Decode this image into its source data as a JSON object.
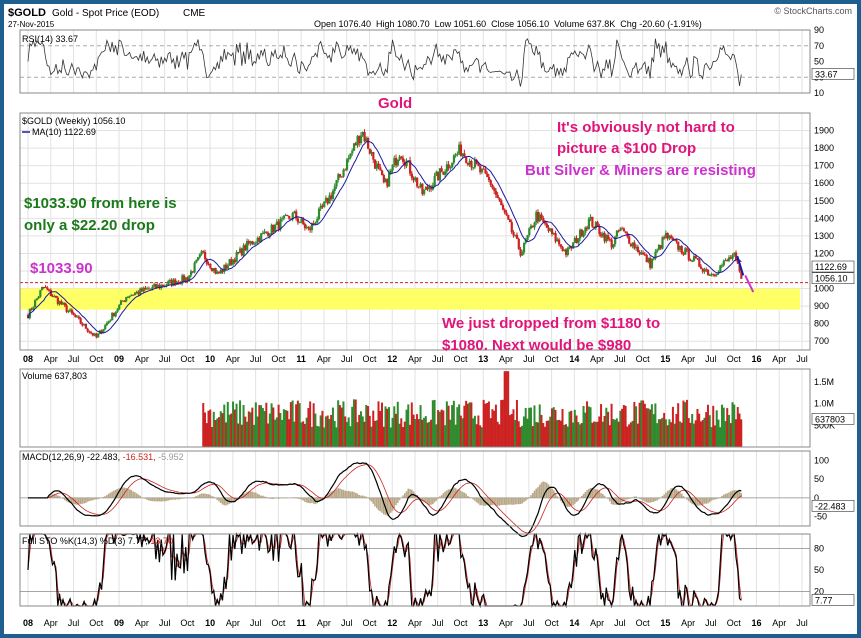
{
  "header": {
    "symbol": "$GOLD",
    "name": "Gold - Spot Price (EOD)",
    "exchange": "CME",
    "date": "27-Nov-2015",
    "watermark": "© StockCharts.com",
    "ohlc": "Open 1076.40  High 1080.70  Low 1051.60  Close 1056.10  Volume 637.8K  Chg -20.60 (-1.91%)"
  },
  "colors": {
    "up": "#2e8b2e",
    "down": "#cc2222",
    "ma": "#1a1aa0",
    "highlight": "#ffff66",
    "magenta": "#e0157a",
    "purple": "#cc33cc",
    "green_text": "#1a7a1a"
  },
  "x_axis": {
    "labels": [
      "08",
      "Apr",
      "Jul",
      "Oct",
      "09",
      "Apr",
      "Jul",
      "Oct",
      "10",
      "Apr",
      "Jul",
      "Oct",
      "11",
      "Apr",
      "Jul",
      "Oct",
      "12",
      "Apr",
      "Jul",
      "Oct",
      "13",
      "Apr",
      "Jul",
      "Oct",
      "14",
      "Apr",
      "Jul",
      "Oct",
      "15",
      "Apr",
      "Jul",
      "Oct",
      "16",
      "Apr",
      "Jul"
    ],
    "bold": [
      "08",
      "09",
      "10",
      "11",
      "12",
      "13",
      "14",
      "15",
      "16"
    ]
  },
  "panels": {
    "rsi": {
      "label": "RSI(14) 33.67",
      "ticks": [
        "90",
        "70",
        "50",
        "30",
        "10"
      ],
      "value_tag": "33.67"
    },
    "price": {
      "legend_main": "$GOLD (Weekly) 1056.10",
      "legend_ma": "MA(10) 1122.69",
      "ticks": [
        "1900",
        "1800",
        "1700",
        "1600",
        "1500",
        "1400",
        "1300",
        "1200",
        "1100",
        "1000",
        "900",
        "800",
        "700"
      ],
      "ma_tag": "1122.69",
      "close_tag": "1056.10"
    },
    "volume": {
      "label": "Volume 637,803",
      "ticks": [
        "1.5M",
        "1.0M",
        "500K"
      ],
      "value_tag": "637803"
    },
    "macd": {
      "label": "MACD(12,26,9)",
      "v1": "-22.483,",
      "v2": "-16.531,",
      "v3": "-5.952",
      "ticks": [
        "100",
        "50",
        "0",
        "-50"
      ],
      "value_tag": "-22.483"
    },
    "sto": {
      "label": "Full STO %K(14,3) %D(3)",
      "v1": "7.77,",
      "v2": "13.70",
      "ticks": [
        "80",
        "50",
        "20"
      ],
      "value_tag": "7.77"
    }
  },
  "annotations": {
    "title": "Gold",
    "a1": "It's obviously not hard to",
    "a2": "picture a $100 Drop",
    "a3": "But Silver & Miners are resisting",
    "b1": "$1033.90 from here is",
    "b2": "only a $22.20  drop",
    "c1": "$1033.90",
    "d1": "We just dropped from $1180 to",
    "d2": "$1080.  Next would be $980"
  },
  "chart_data": {
    "type": "candlestick",
    "title": "Gold - Spot Price (EOD)",
    "frequency": "weekly",
    "x_range": [
      "2008-01",
      "2016-07"
    ],
    "y_range": [
      650,
      2000
    ],
    "support_level": 1033.9,
    "highlight_zone": [
      880,
      1000
    ],
    "close": 1056.1,
    "ma10": 1122.69,
    "key_points": [
      {
        "date": "2008-01",
        "price": 850
      },
      {
        "date": "2008-03",
        "price": 1010
      },
      {
        "date": "2008-10",
        "price": 720
      },
      {
        "date": "2009-02",
        "price": 960
      },
      {
        "date": "2009-10",
        "price": 1060
      },
      {
        "date": "2009-12",
        "price": 1200
      },
      {
        "date": "2010-02",
        "price": 1080
      },
      {
        "date": "2010-06",
        "price": 1250
      },
      {
        "date": "2010-12",
        "price": 1420
      },
      {
        "date": "2011-02",
        "price": 1330
      },
      {
        "date": "2011-05",
        "price": 1540
      },
      {
        "date": "2011-09",
        "price": 1900
      },
      {
        "date": "2011-12",
        "price": 1580
      },
      {
        "date": "2012-02",
        "price": 1790
      },
      {
        "date": "2012-05",
        "price": 1540
      },
      {
        "date": "2012-10",
        "price": 1790
      },
      {
        "date": "2013-02",
        "price": 1600
      },
      {
        "date": "2013-06",
        "price": 1200
      },
      {
        "date": "2013-08",
        "price": 1420
      },
      {
        "date": "2013-12",
        "price": 1200
      },
      {
        "date": "2014-03",
        "price": 1390
      },
      {
        "date": "2014-06",
        "price": 1250
      },
      {
        "date": "2014-07",
        "price": 1340
      },
      {
        "date": "2014-11",
        "price": 1140
      },
      {
        "date": "2015-01",
        "price": 1300
      },
      {
        "date": "2015-07",
        "price": 1080
      },
      {
        "date": "2015-10",
        "price": 1190
      },
      {
        "date": "2015-11",
        "price": 1056
      }
    ],
    "volume": {
      "value": 637803,
      "peak": 1800000,
      "ticks": [
        500000,
        1000000,
        1500000
      ]
    },
    "rsi": {
      "value": 33.67,
      "range": [
        10,
        90
      ]
    },
    "macd": {
      "macd": -22.483,
      "signal": -16.531,
      "hist": -5.952,
      "range": [
        -75,
        125
      ]
    },
    "full_sto": {
      "k": 7.77,
      "d": 13.7,
      "range": [
        0,
        100
      ]
    }
  }
}
